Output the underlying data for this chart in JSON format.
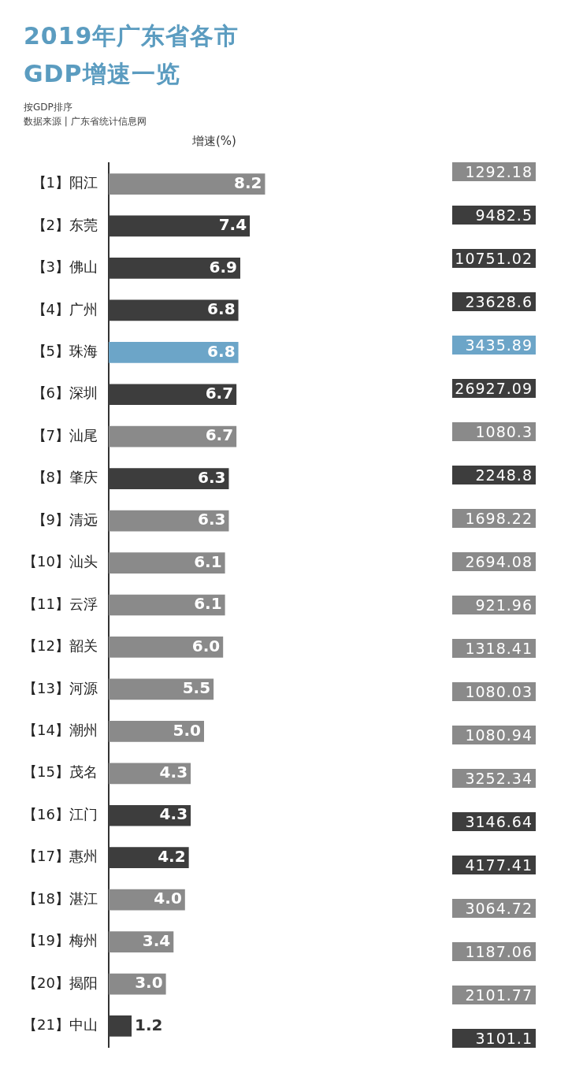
{
  "chart_data": [
    {
      "type": "bar",
      "orientation": "horizontal",
      "title": "2019年广东省各市\nGDP增速一览",
      "xlabel": "增速(%)",
      "annotations": [
        "按GDP排序",
        "数据来源 | 广东省统计信息网"
      ],
      "categories": [
        "【1】阳江",
        "【2】东莞",
        "【3】佛山",
        "【4】广州",
        "【5】珠海",
        "【6】深圳",
        "【7】汕尾",
        "【8】肇庆",
        "【9】清远",
        "【10】汕头",
        "【11】云浮",
        "【12】韶关",
        "【13】河源",
        "【14】潮州",
        "【15】茂名",
        "【16】江门",
        "【17】惠州",
        "【18】湛江",
        "【19】梅州",
        "【20】揭阳",
        "【21】中山"
      ],
      "values": [
        8.2,
        7.4,
        6.9,
        6.8,
        6.8,
        6.7,
        6.7,
        6.3,
        6.3,
        6.1,
        6.1,
        6.0,
        5.5,
        5.0,
        4.3,
        4.3,
        4.2,
        4.0,
        3.4,
        3.0,
        1.2
      ],
      "value_labels": [
        "8.2",
        "7.4",
        "6.9",
        "6.8",
        "6.8",
        "6.7",
        "6.7",
        "6.3",
        "6.3",
        "6.1",
        "6.1",
        "6.0",
        "5.5",
        "5.0",
        "4.3",
        "4.3",
        "4.2",
        "4.0",
        "3.4",
        "3.0",
        "1.2"
      ],
      "colors": [
        "#8a8a8a",
        "#3d3d3d",
        "#3d3d3d",
        "#3d3d3d",
        "#6ca5c8",
        "#3d3d3d",
        "#8a8a8a",
        "#3d3d3d",
        "#8a8a8a",
        "#8a8a8a",
        "#8a8a8a",
        "#8a8a8a",
        "#8a8a8a",
        "#8a8a8a",
        "#8a8a8a",
        "#3d3d3d",
        "#3d3d3d",
        "#8a8a8a",
        "#8a8a8a",
        "#8a8a8a",
        "#3d3d3d"
      ],
      "tick_labels": "y",
      "legend": false
    },
    {
      "type": "other",
      "annotations": [
        "1292.18",
        "9482.5",
        "10751.02",
        "23628.6",
        "3435.89",
        "26927.09",
        "1080.3",
        "2248.8",
        "1698.22",
        "2694.08",
        "921.96",
        "1318.41",
        "1080.03",
        "1080.94",
        "3252.34",
        "3146.64",
        "4177.41",
        "3064.72",
        "1187.06",
        "2101.77",
        "3101.1"
      ],
      "colors": [
        "#8a8a8a",
        "#3d3d3d",
        "#3d3d3d",
        "#3d3d3d",
        "#6ca5c8",
        "#3d3d3d",
        "#8a8a8a",
        "#3d3d3d",
        "#8a8a8a",
        "#8a8a8a",
        "#8a8a8a",
        "#8a8a8a",
        "#8a8a8a",
        "#8a8a8a",
        "#8a8a8a",
        "#3d3d3d",
        "#3d3d3d",
        "#8a8a8a",
        "#8a8a8a",
        "#8a8a8a",
        "#3d3d3d"
      ]
    }
  ]
}
